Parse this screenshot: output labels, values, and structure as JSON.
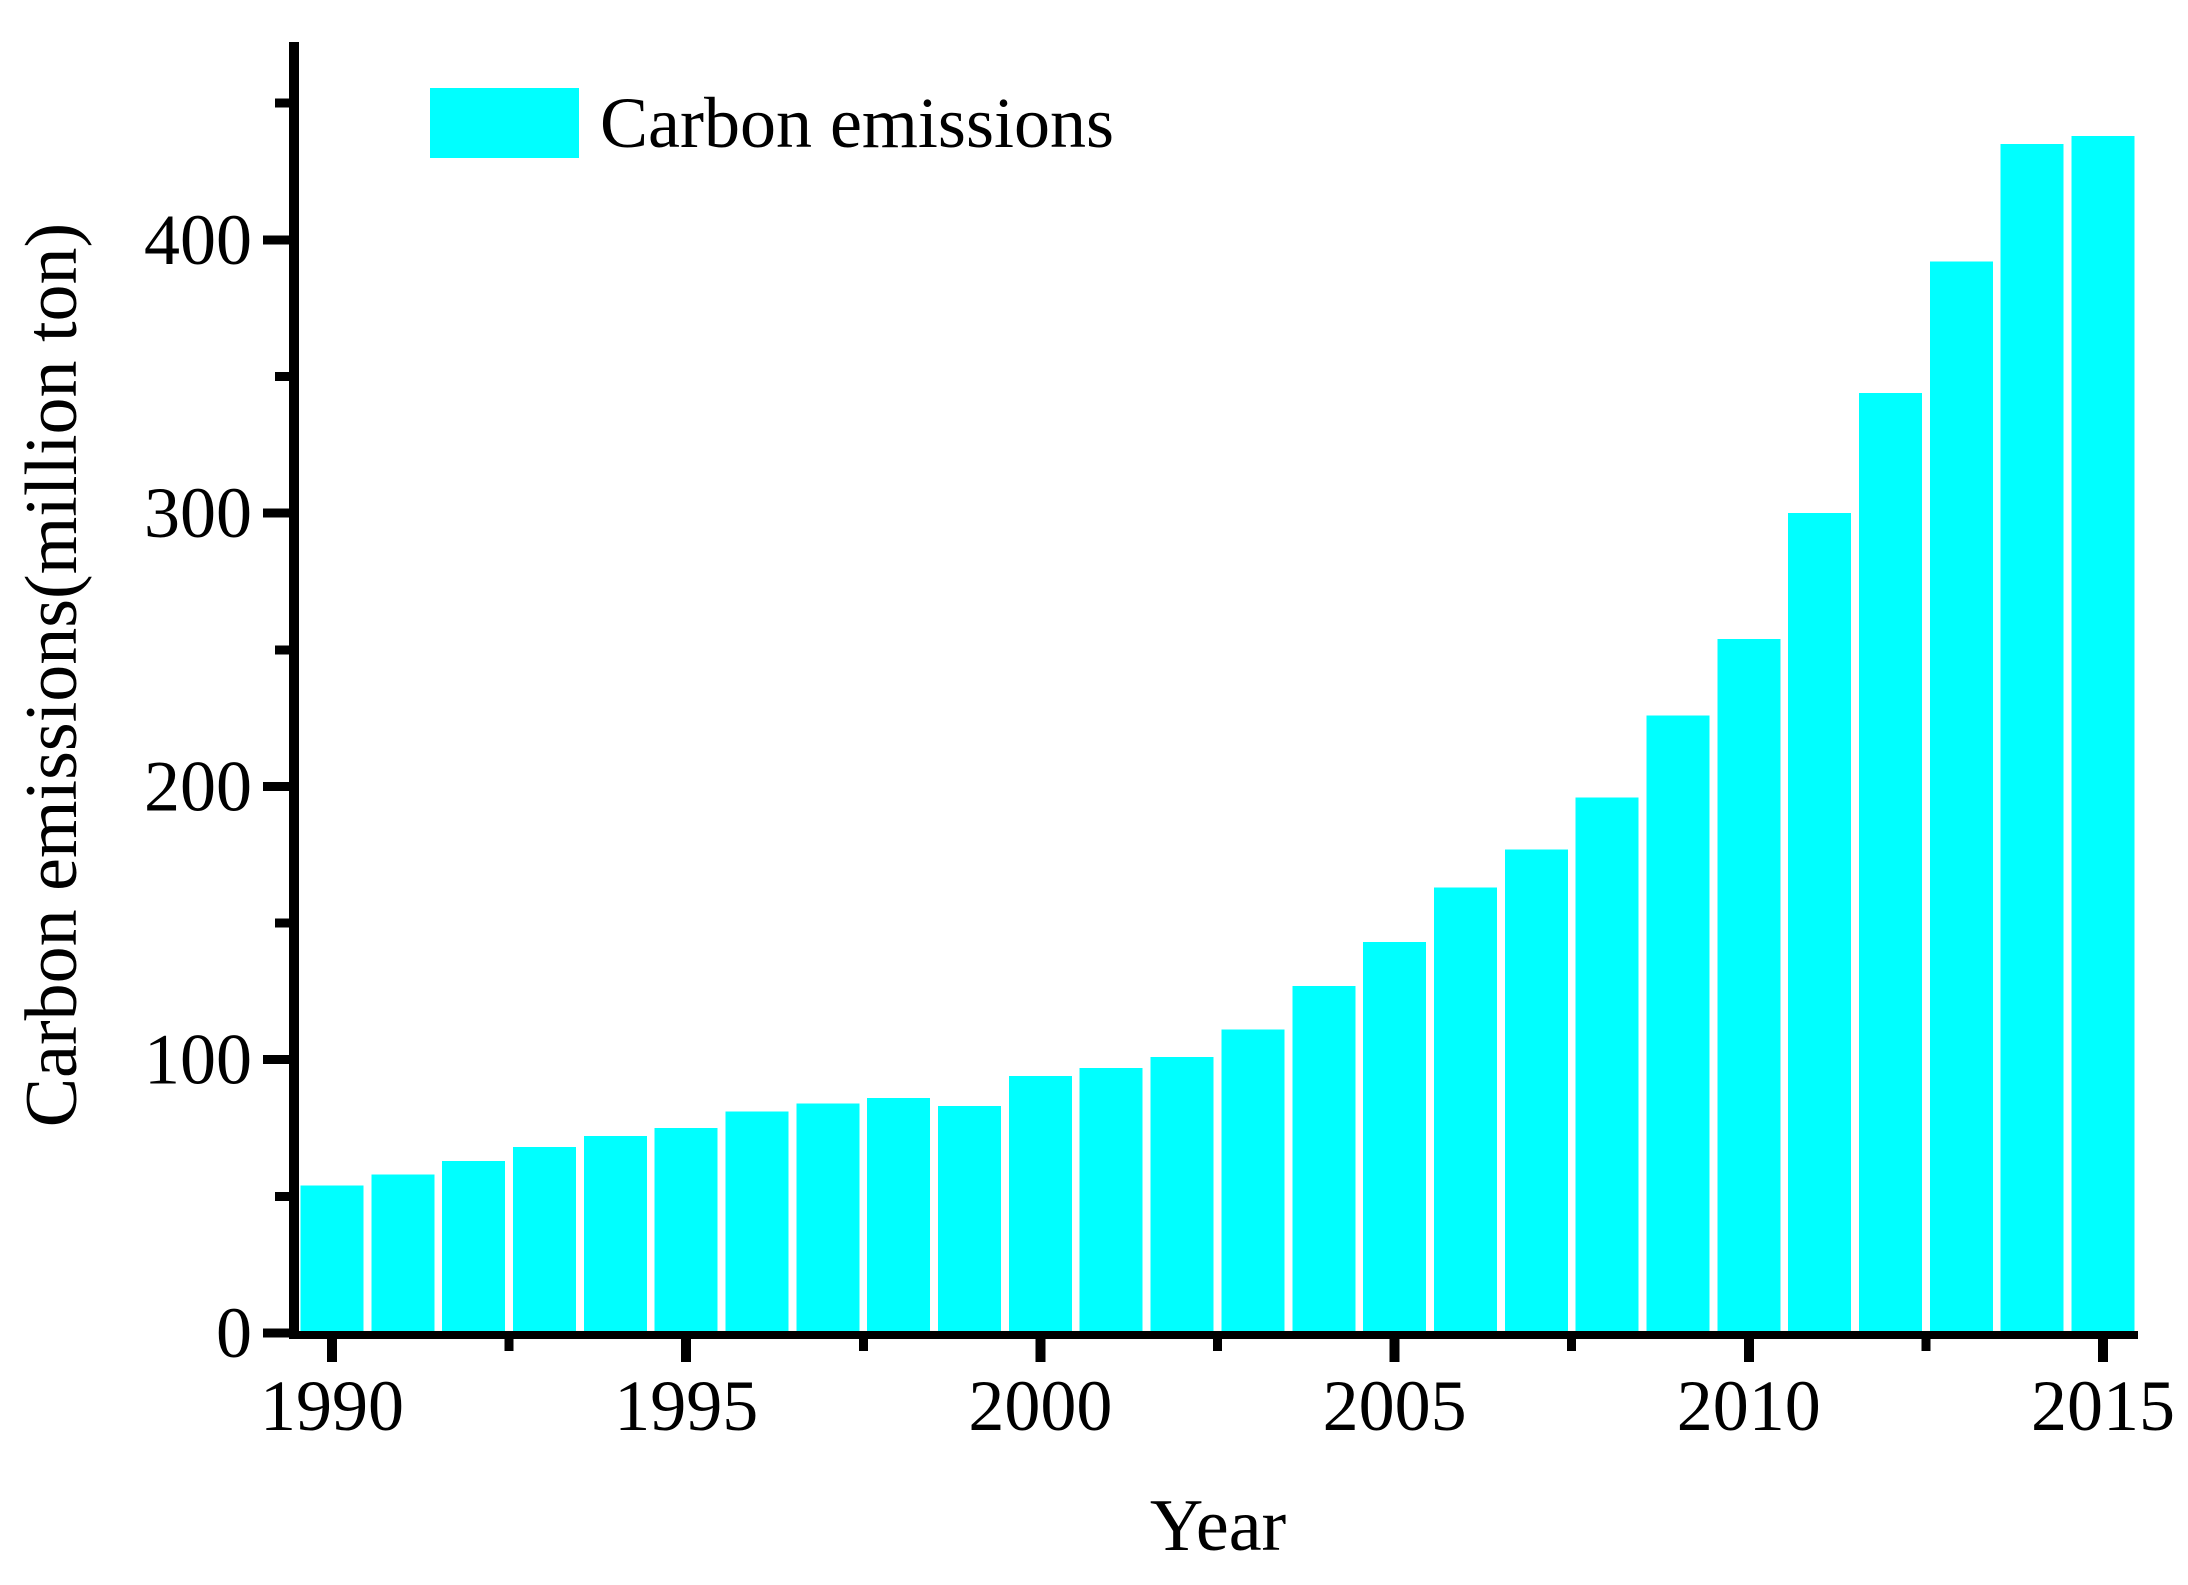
{
  "figure": {
    "background": "#ffffff",
    "axis_color": "#000000",
    "bar_color": "#00ffff"
  },
  "legend": {
    "label": "Carbon emissions",
    "swatch_color": "#00ffff",
    "position": "top-left"
  },
  "x_axis": {
    "title": "Year",
    "major_tick_years": [
      1990,
      1995,
      2000,
      2005,
      2010,
      2015
    ],
    "major_tick_labels": [
      "1990",
      "1995",
      "2000",
      "2005",
      "2010",
      "2015"
    ],
    "minor_tick_years": [
      1992.5,
      1997.5,
      2002.5,
      2007.5,
      2012.5
    ]
  },
  "y_axis": {
    "title": "Carbon emissions(million ton)",
    "major_tick_values": [
      0,
      100,
      200,
      300,
      400
    ],
    "major_tick_labels": [
      "0",
      "100",
      "200",
      "300",
      "400"
    ],
    "minor_tick_values": [
      50,
      150,
      250,
      350,
      450
    ]
  },
  "chart_data": {
    "type": "bar",
    "title": "",
    "categories": [
      1990,
      1991,
      1992,
      1993,
      1994,
      1995,
      1996,
      1997,
      1998,
      1999,
      2000,
      2001,
      2002,
      2003,
      2004,
      2005,
      2006,
      2007,
      2008,
      2009,
      2010,
      2011,
      2012,
      2013,
      2014,
      2015
    ],
    "values": [
      54,
      58,
      63,
      68,
      72,
      75,
      81,
      84,
      86,
      83,
      94,
      97,
      101,
      111,
      127,
      143,
      163,
      177,
      196,
      226,
      254,
      300,
      344,
      392,
      435,
      438
    ],
    "series": [
      {
        "name": "Carbon emissions",
        "values": [
          54,
          58,
          63,
          68,
          72,
          75,
          81,
          84,
          86,
          83,
          94,
          97,
          101,
          111,
          127,
          143,
          163,
          177,
          196,
          226,
          254,
          300,
          344,
          392,
          435,
          438
        ]
      }
    ],
    "xlabel": "Year",
    "ylabel": "Carbon emissions(million ton)",
    "ylim": [
      0,
      475
    ],
    "xlim": [
      1989.4,
      2015.6
    ],
    "bar_color": "#00ffff",
    "grid": false,
    "legend_position": "top-left"
  }
}
